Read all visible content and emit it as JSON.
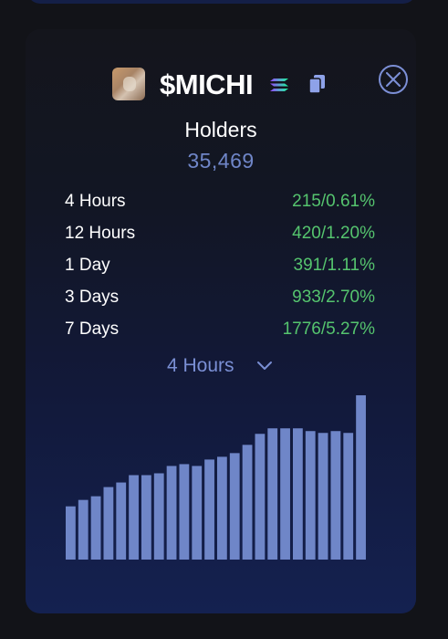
{
  "token": {
    "name": "$MICHI",
    "chain_icon": "solana-icon",
    "copy_icon": "copy-icon",
    "avatar": "token-avatar"
  },
  "holders": {
    "label": "Holders",
    "value": "35,469"
  },
  "stats": [
    {
      "label": "4 Hours",
      "value": "215/0.61%"
    },
    {
      "label": "12 Hours",
      "value": "420/1.20%"
    },
    {
      "label": "1 Day",
      "value": "391/1.11%"
    },
    {
      "label": "3 Days",
      "value": "933/2.70%"
    },
    {
      "label": "7 Days",
      "value": "1776/5.27%"
    }
  ],
  "period_select": {
    "selected": "4 Hours",
    "icon": "chevron-down-icon"
  },
  "colors": {
    "accent": "#6f86c8",
    "positive": "#55c46e",
    "bar": "#6f86c8"
  },
  "chart_data": {
    "type": "bar",
    "values": [
      58,
      65,
      69,
      79,
      84,
      92,
      92,
      94,
      102,
      104,
      102,
      109,
      112,
      116,
      125,
      137,
      143,
      143,
      143,
      140,
      138,
      140,
      138,
      179
    ],
    "ylim": [
      0,
      185
    ]
  }
}
